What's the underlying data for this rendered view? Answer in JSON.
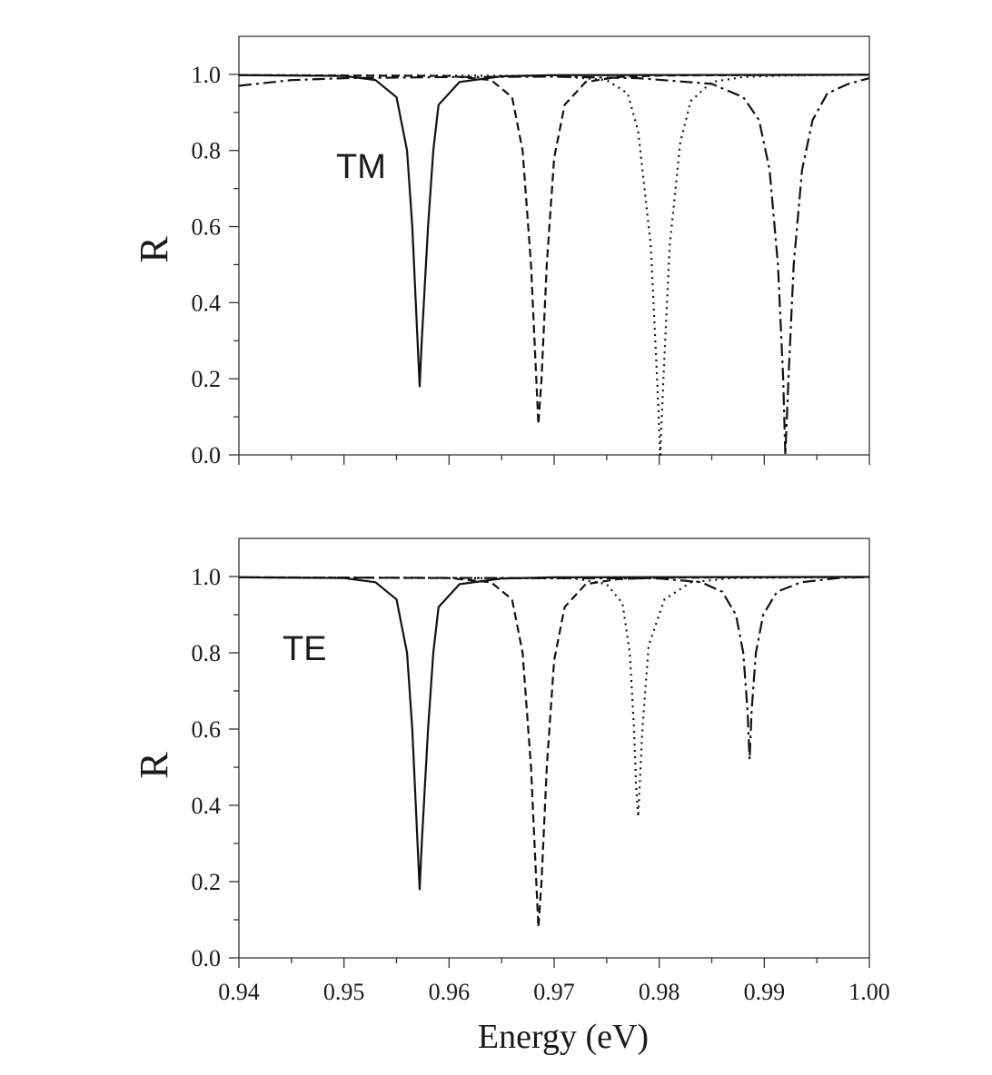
{
  "chart_data": [
    {
      "type": "line",
      "panel_label": "TM",
      "ylabel": "R",
      "xlabel": "",
      "xlim": [
        0.94,
        1.0
      ],
      "ylim": [
        0.0,
        1.1
      ],
      "xticks": [
        "0.94",
        "0.95",
        "0.96",
        "0.97",
        "0.98",
        "0.99",
        "1.00"
      ],
      "yticks": [
        "0.0",
        "0.2",
        "0.4",
        "0.6",
        "0.8",
        "1.0"
      ],
      "show_xtick_labels": false,
      "series": [
        {
          "style": "solid",
          "x": [
            0.94,
            0.95,
            0.953,
            0.955,
            0.956,
            0.9565,
            0.957,
            0.9572,
            0.9574,
            0.958,
            0.9585,
            0.959,
            0.961,
            0.965,
            0.97,
            1.0
          ],
          "y": [
            0.998,
            0.996,
            0.985,
            0.94,
            0.8,
            0.6,
            0.3,
            0.18,
            0.3,
            0.6,
            0.8,
            0.92,
            0.98,
            0.995,
            0.998,
            0.999
          ]
        },
        {
          "style": "dashed",
          "x": [
            0.94,
            0.96,
            0.964,
            0.966,
            0.967,
            0.9678,
            0.9683,
            0.9685,
            0.9688,
            0.9693,
            0.97,
            0.971,
            0.973,
            0.976,
            0.98,
            1.0
          ],
          "y": [
            0.998,
            0.996,
            0.985,
            0.94,
            0.8,
            0.5,
            0.2,
            0.08,
            0.2,
            0.5,
            0.78,
            0.92,
            0.98,
            0.993,
            0.997,
            0.999
          ]
        },
        {
          "style": "dotted",
          "x": [
            0.94,
            0.97,
            0.975,
            0.977,
            0.978,
            0.9792,
            0.9798,
            0.9801,
            0.9804,
            0.981,
            0.982,
            0.983,
            0.985,
            0.988,
            0.992,
            1.0
          ],
          "y": [
            0.998,
            0.996,
            0.985,
            0.95,
            0.85,
            0.55,
            0.2,
            0.0,
            0.2,
            0.55,
            0.82,
            0.93,
            0.98,
            0.993,
            0.997,
            0.999
          ]
        },
        {
          "style": "dash-dot",
          "x": [
            0.94,
            0.945,
            0.95,
            0.96,
            0.97,
            0.978,
            0.985,
            0.988,
            0.9895,
            0.9905,
            0.9913,
            0.9918,
            0.992,
            0.9923,
            0.9928,
            0.9936,
            0.9946,
            0.996,
            0.998,
            1.0
          ],
          "y": [
            0.97,
            0.985,
            0.99,
            0.993,
            0.994,
            0.99,
            0.975,
            0.94,
            0.88,
            0.75,
            0.5,
            0.2,
            0.0,
            0.2,
            0.5,
            0.75,
            0.88,
            0.95,
            0.975,
            0.99
          ]
        }
      ]
    },
    {
      "type": "line",
      "panel_label": "TE",
      "ylabel": "R",
      "xlabel": "Energy (eV)",
      "xlim": [
        0.94,
        1.0
      ],
      "ylim": [
        0.0,
        1.1
      ],
      "xticks": [
        "0.94",
        "0.95",
        "0.96",
        "0.97",
        "0.98",
        "0.99",
        "1.00"
      ],
      "yticks": [
        "0.0",
        "0.2",
        "0.4",
        "0.6",
        "0.8",
        "1.0"
      ],
      "show_xtick_labels": true,
      "series": [
        {
          "style": "solid",
          "x": [
            0.94,
            0.95,
            0.953,
            0.955,
            0.956,
            0.9565,
            0.957,
            0.9572,
            0.9574,
            0.958,
            0.9585,
            0.959,
            0.961,
            0.965,
            0.97,
            1.0
          ],
          "y": [
            0.998,
            0.996,
            0.985,
            0.94,
            0.8,
            0.6,
            0.3,
            0.18,
            0.3,
            0.6,
            0.8,
            0.92,
            0.98,
            0.995,
            0.998,
            0.999
          ]
        },
        {
          "style": "dashed",
          "x": [
            0.94,
            0.96,
            0.964,
            0.966,
            0.967,
            0.9678,
            0.9683,
            0.9685,
            0.9688,
            0.9693,
            0.97,
            0.971,
            0.973,
            0.976,
            0.98,
            1.0
          ],
          "y": [
            0.998,
            0.996,
            0.985,
            0.94,
            0.8,
            0.5,
            0.2,
            0.08,
            0.2,
            0.5,
            0.78,
            0.92,
            0.98,
            0.993,
            0.997,
            0.999
          ]
        },
        {
          "style": "dotted",
          "x": [
            0.94,
            0.972,
            0.975,
            0.9765,
            0.9772,
            0.9776,
            0.9778,
            0.978,
            0.9784,
            0.979,
            0.9805,
            0.983,
            0.987,
            1.0
          ],
          "y": [
            0.998,
            0.995,
            0.98,
            0.93,
            0.8,
            0.6,
            0.45,
            0.37,
            0.6,
            0.82,
            0.94,
            0.985,
            0.996,
            0.999
          ]
        },
        {
          "style": "dash-dot",
          "x": [
            0.94,
            0.98,
            0.984,
            0.986,
            0.9873,
            0.988,
            0.9884,
            0.9886,
            0.9888,
            0.9892,
            0.9899,
            0.9912,
            0.9935,
            0.997,
            1.0
          ],
          "y": [
            0.998,
            0.995,
            0.985,
            0.96,
            0.9,
            0.8,
            0.65,
            0.52,
            0.65,
            0.8,
            0.9,
            0.96,
            0.985,
            0.996,
            0.999
          ]
        }
      ]
    }
  ]
}
